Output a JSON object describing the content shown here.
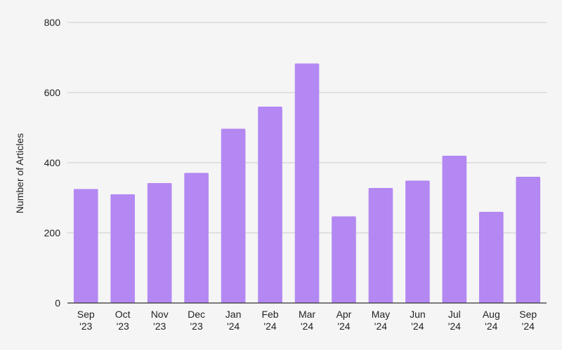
{
  "chart_data": {
    "type": "bar",
    "title": "",
    "xlabel": "",
    "ylabel": "Number of Articles",
    "ylim": [
      0,
      800
    ],
    "yticks": [
      0,
      200,
      400,
      600,
      800
    ],
    "grid": true,
    "legend": "none",
    "bar_color": "#b388f2",
    "categories": [
      [
        "Sep",
        "'23"
      ],
      [
        "Oct",
        "'23"
      ],
      [
        "Nov",
        "'23"
      ],
      [
        "Dec",
        "'23"
      ],
      [
        "Jan",
        "'24"
      ],
      [
        "Feb",
        "'24"
      ],
      [
        "Mar",
        "'24"
      ],
      [
        "Apr",
        "'24"
      ],
      [
        "May",
        "'24"
      ],
      [
        "Jun",
        "'24"
      ],
      [
        "Jul",
        "'24"
      ],
      [
        "Aug",
        "'24"
      ],
      [
        "Sep",
        "'24"
      ]
    ],
    "values": [
      325,
      310,
      342,
      371,
      497,
      560,
      683,
      247,
      328,
      349,
      420,
      260,
      360
    ]
  }
}
